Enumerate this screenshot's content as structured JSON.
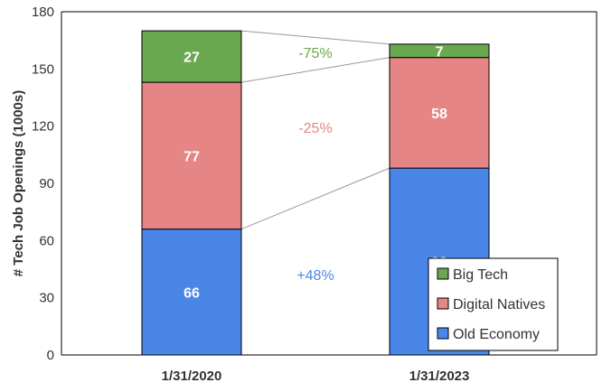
{
  "chart_data": {
    "type": "bar",
    "stacked": true,
    "categories": [
      "1/31/2020",
      "1/31/2023"
    ],
    "series": [
      {
        "name": "Old Economy",
        "values": [
          66,
          98
        ],
        "color": "#4a86e8"
      },
      {
        "name": "Digital Natives",
        "values": [
          77,
          58
        ],
        "color": "#e58585"
      },
      {
        "name": "Big Tech",
        "values": [
          27,
          7
        ],
        "color": "#6aa84f"
      }
    ],
    "ylabel": "# Tech Job Openings (1000s)",
    "xlabel": "",
    "ylim": [
      0,
      180
    ],
    "yticks": [
      0,
      30,
      60,
      90,
      120,
      150,
      180
    ],
    "grid": false,
    "legend_position": "bottom-right",
    "legend_order": [
      "Big Tech",
      "Digital Natives",
      "Old Economy"
    ],
    "annotations": [
      {
        "text": "-75%",
        "series": "Big Tech",
        "color": "#6aa84f"
      },
      {
        "text": "-25%",
        "series": "Digital Natives",
        "color": "#e58585"
      },
      {
        "text": "+48%",
        "series": "Old Economy",
        "color": "#4a86e8"
      }
    ]
  }
}
